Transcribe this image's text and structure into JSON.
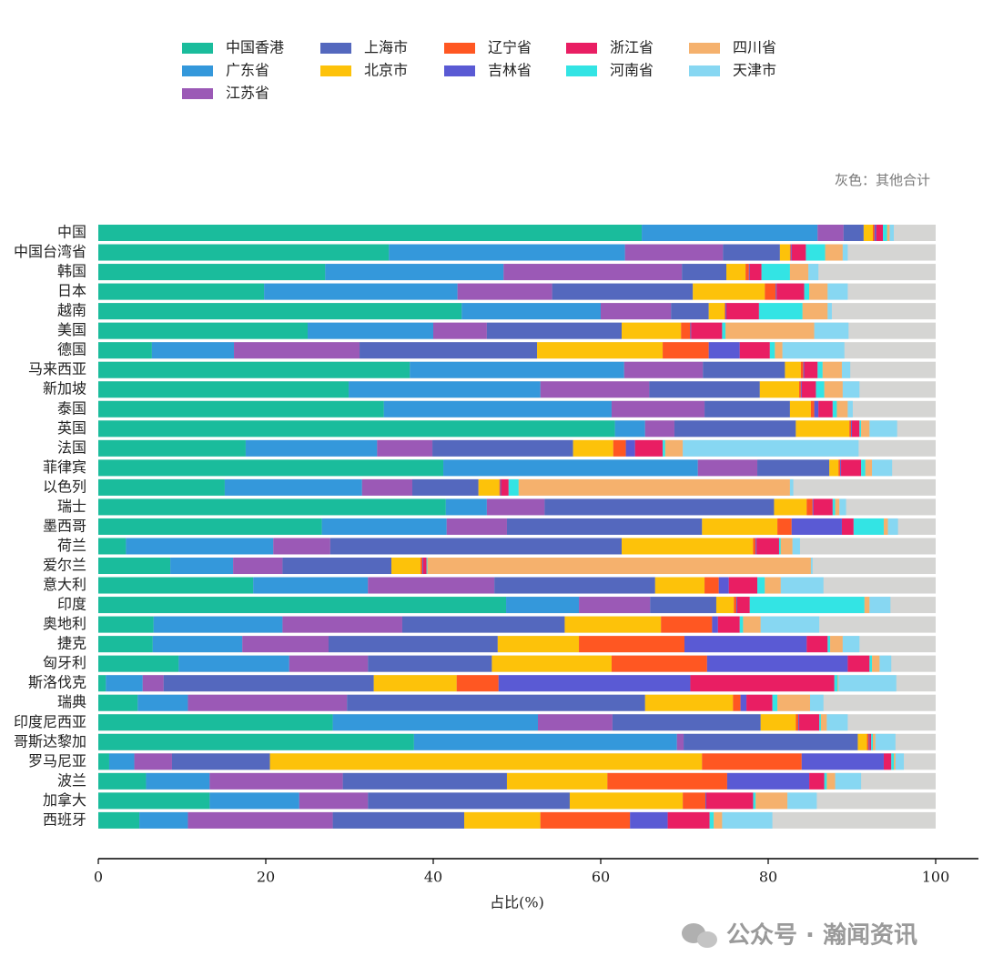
{
  "chart_data": {
    "type": "bar",
    "orientation": "horizontal",
    "stacked": true,
    "annotation": "灰色：其他合计",
    "xlabel": "占比(%)",
    "watermark": "公众号 · 瀚闻资讯",
    "xlim": [
      0,
      100
    ],
    "xticks": [
      0,
      20,
      40,
      60,
      80,
      100
    ],
    "remainder_color": "#d5d5d3",
    "categories": [
      "中国",
      "中国台湾省",
      "韩国",
      "日本",
      "越南",
      "美国",
      "德国",
      "马来西亚",
      "新加坡",
      "泰国",
      "英国",
      "法国",
      "菲律宾",
      "以色列",
      "瑞士",
      "墨西哥",
      "荷兰",
      "爱尔兰",
      "意大利",
      "印度",
      "奥地利",
      "捷克",
      "匈牙利",
      "斯洛伐克",
      "瑞典",
      "印度尼西亚",
      "哥斯达黎加",
      "罗马尼亚",
      "波兰",
      "加拿大",
      "西班牙"
    ],
    "series": [
      {
        "name": "中国香港",
        "color": "#1abc9c",
        "values": [
          64.9,
          34.7,
          27.1,
          19.8,
          43.4,
          25.0,
          6.4,
          37.2,
          29.9,
          34.1,
          61.7,
          17.6,
          41.2,
          15.1,
          41.5,
          26.7,
          3.3,
          8.6,
          18.5,
          48.7,
          6.6,
          6.5,
          9.6,
          0.9,
          4.7,
          28.0,
          37.7,
          1.3,
          5.7,
          13.3,
          4.9
        ]
      },
      {
        "name": "广东省",
        "color": "#3498db",
        "values": [
          21.0,
          28.2,
          21.3,
          23.1,
          16.6,
          15.0,
          9.8,
          25.6,
          22.9,
          27.2,
          3.6,
          15.7,
          30.4,
          16.4,
          4.9,
          14.9,
          17.6,
          7.5,
          13.7,
          8.7,
          15.4,
          10.7,
          13.2,
          4.4,
          6.0,
          24.5,
          31.4,
          3.0,
          7.6,
          10.7,
          5.8
        ]
      },
      {
        "name": "江苏省",
        "color": "#9b59b6",
        "values": [
          3.1,
          11.7,
          21.3,
          11.3,
          8.4,
          6.4,
          15.0,
          9.4,
          13.0,
          11.1,
          3.5,
          6.6,
          7.1,
          6.0,
          6.9,
          7.2,
          6.8,
          5.9,
          15.1,
          8.5,
          14.3,
          10.3,
          9.4,
          2.5,
          19.0,
          8.9,
          0.8,
          4.5,
          15.9,
          8.2,
          17.3
        ]
      },
      {
        "name": "上海市",
        "color": "#5468be",
        "values": [
          2.4,
          6.8,
          5.3,
          16.8,
          4.5,
          16.1,
          21.2,
          9.8,
          13.2,
          10.2,
          14.5,
          16.8,
          8.6,
          7.9,
          27.4,
          23.3,
          34.8,
          13.0,
          19.2,
          7.9,
          19.4,
          20.2,
          14.8,
          25.1,
          35.6,
          17.7,
          20.8,
          11.7,
          19.6,
          24.1,
          15.7
        ]
      },
      {
        "name": "北京市",
        "color": "#fdc20a",
        "values": [
          1.1,
          1.2,
          2.3,
          8.6,
          1.9,
          7.1,
          15.0,
          1.9,
          4.7,
          2.5,
          6.4,
          4.8,
          1.1,
          2.5,
          3.9,
          9.0,
          15.7,
          3.5,
          5.9,
          2.1,
          11.5,
          9.7,
          14.3,
          9.9,
          10.5,
          4.2,
          1.1,
          51.6,
          12.0,
          13.5,
          9.1
        ]
      },
      {
        "name": "辽宁省",
        "color": "#ff5722",
        "values": [
          0.2,
          0.1,
          0.4,
          1.3,
          0.1,
          1.1,
          5.5,
          0.3,
          0.2,
          0.4,
          0.2,
          1.5,
          0.2,
          0.1,
          0.7,
          1.7,
          0.3,
          0.2,
          1.7,
          0.3,
          6.1,
          12.6,
          11.4,
          5.0,
          0.9,
          0.3,
          0.2,
          11.9,
          14.3,
          2.7,
          10.7
        ]
      },
      {
        "name": "吉林省",
        "color": "#5a5ad4",
        "values": [
          0.2,
          0.1,
          0.1,
          0.1,
          0.1,
          0.1,
          3.7,
          0.1,
          0.1,
          0.5,
          0.1,
          1.1,
          0.1,
          0.1,
          0.1,
          6.0,
          0.1,
          0.1,
          1.2,
          0.1,
          0.7,
          14.6,
          16.8,
          22.9,
          0.7,
          0.1,
          0.1,
          9.8,
          9.8,
          0.1,
          4.5
        ]
      },
      {
        "name": "浙江省",
        "color": "#e91e63",
        "values": [
          0.8,
          1.7,
          1.4,
          3.3,
          3.9,
          3.7,
          3.6,
          1.6,
          1.7,
          1.7,
          0.9,
          3.3,
          2.4,
          0.9,
          2.3,
          1.4,
          2.7,
          0.4,
          3.4,
          1.5,
          2.6,
          2.5,
          2.6,
          17.2,
          3.1,
          2.4,
          0.2,
          0.9,
          1.8,
          5.6,
          5.0
        ]
      },
      {
        "name": "河南省",
        "color": "#33e4e4",
        "values": [
          0.5,
          2.3,
          3.4,
          0.6,
          5.2,
          0.4,
          0.6,
          0.6,
          1.0,
          0.5,
          0.2,
          0.3,
          0.5,
          1.2,
          0.3,
          3.6,
          0.2,
          0.1,
          0.9,
          13.7,
          0.4,
          0.3,
          0.3,
          0.4,
          0.6,
          0.2,
          0.2,
          0.3,
          0.3,
          0.3,
          0.5
        ]
      },
      {
        "name": "四川省",
        "color": "#f5b16d",
        "values": [
          0.3,
          2.1,
          2.2,
          2.2,
          3.0,
          10.6,
          0.9,
          2.3,
          2.2,
          1.3,
          1.0,
          2.1,
          0.8,
          32.4,
          0.5,
          0.5,
          1.4,
          45.8,
          1.9,
          0.6,
          2.1,
          1.5,
          0.9,
          0.1,
          3.9,
          0.7,
          0.3,
          0.2,
          1.0,
          3.8,
          1.0
        ]
      },
      {
        "name": "天津市",
        "color": "#87d7f2",
        "values": [
          0.5,
          0.6,
          1.2,
          2.4,
          0.5,
          4.1,
          7.4,
          1.0,
          2.0,
          0.6,
          3.3,
          21.0,
          2.4,
          0.4,
          0.8,
          1.2,
          0.9,
          0.2,
          5.1,
          2.5,
          7.0,
          2.0,
          1.4,
          6.9,
          1.6,
          2.5,
          2.4,
          1.0,
          3.1,
          3.5,
          6.0
        ]
      }
    ]
  }
}
